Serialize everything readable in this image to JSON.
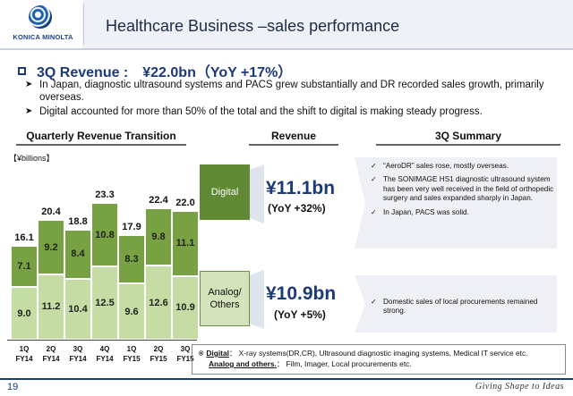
{
  "header": {
    "logo_text": "KONICA MINOLTA",
    "title": "Healthcare Business –sales performance"
  },
  "headline": "3Q Revenue :　¥22.0bn（YoY +17%）",
  "bullets": [
    "In Japan, diagnostic ultrasound systems and PACS grew substantially and DR recorded sales growth, primarily overseas.",
    "Digital accounted for more than 50% of the total and the shift to digital is making steady progress."
  ],
  "columns": {
    "quarterly": "Quarterly Revenue Transition",
    "revenue": "Revenue",
    "summary": "3Q Summary"
  },
  "unit": "【¥billions】",
  "chart_data": {
    "type": "bar",
    "stacked": true,
    "categories": [
      "1Q FY14",
      "2Q FY14",
      "3Q FY14",
      "4Q FY14",
      "1Q FY15",
      "2Q FY15",
      "3Q FY15"
    ],
    "category_lines": [
      [
        "1Q",
        "FY14"
      ],
      [
        "2Q",
        "FY14"
      ],
      [
        "3Q",
        "FY14"
      ],
      [
        "4Q",
        "FY14"
      ],
      [
        "1Q",
        "FY15"
      ],
      [
        "2Q",
        "FY15"
      ],
      [
        "3Q",
        "FY15"
      ]
    ],
    "series": [
      {
        "name": "Analog/ Others",
        "color": "#c5dca5",
        "values": [
          9.0,
          11.2,
          10.4,
          12.5,
          9.6,
          12.6,
          10.9
        ]
      },
      {
        "name": "Digital",
        "color": "#77a142",
        "values": [
          7.1,
          9.2,
          8.4,
          10.8,
          8.3,
          9.8,
          11.1
        ]
      }
    ],
    "totals": [
      16.1,
      20.4,
      18.8,
      23.3,
      17.9,
      22.4,
      22.0
    ],
    "ylim": [
      0,
      25
    ]
  },
  "digital": {
    "label": "Digital",
    "revenue": "¥11.1bn",
    "yoy": "(YoY +32%)",
    "summary": [
      "“AeroDR” sales rose, mostly overseas.",
      "The SONIMAGE HS1 diagnostic ultrasound system has been very well received in the field of orthopedic surgery and sales expanded sharply in Japan.",
      "In Japan, PACS was solid."
    ]
  },
  "analog": {
    "label": "Analog/ Others",
    "revenue": "¥10.9bn",
    "yoy": "(YoY +5%)",
    "summary": [
      "Domestic sales of local procurements remained strong."
    ]
  },
  "footnote": {
    "mark": "※",
    "digital_term": "Digital",
    "digital_desc": "： X-ray systems(DR,CR), Ultrasound diagnostic imaging systems,  Medical IT service etc.",
    "analog_term": "Analog and others.",
    "analog_desc": "： Film, Imager, Local procurements etc."
  },
  "footer": {
    "page": "19",
    "tagline": "Giving Shape to Ideas"
  },
  "colors": {
    "navy": "#1c3a78",
    "digital_green": "#77a142",
    "analog_green": "#c5dca5"
  }
}
